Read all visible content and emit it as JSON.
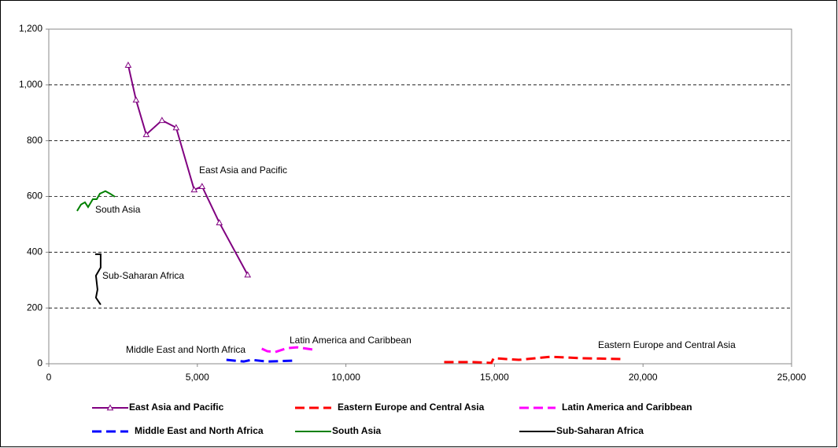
{
  "chart_data": {
    "type": "line",
    "xlim": [
      0,
      25000
    ],
    "xticks": [
      0,
      {
        "value": 5000,
        "label": "5,000"
      },
      {
        "value": 10000,
        "label": "10,000"
      },
      {
        "value": 15000,
        "label": "15,000"
      },
      {
        "value": 20000,
        "label": "20,000"
      },
      {
        "value": 25000,
        "label": "25,000"
      }
    ],
    "ylim": [
      0,
      1200
    ],
    "yticks": [
      0,
      200,
      400,
      600,
      800,
      {
        "value": 1000,
        "label": "1,000"
      },
      {
        "value": 1200,
        "label": "1,200"
      }
    ],
    "grid": true,
    "legend": "bottom",
    "series": [
      {
        "name": "East Asia and Pacific",
        "color": "#800080",
        "dashed": false,
        "marker": "triangle",
        "x": [
          2672,
          2937,
          3280,
          3810,
          4286,
          4894,
          5159,
          5741,
          6693
        ],
        "values": [
          1071,
          946,
          822,
          873,
          847,
          624,
          636,
          506,
          319
        ]
      },
      {
        "name": "Eastern Europe and Central Asia",
        "color": "#ff0000",
        "dashed": true,
        "x": [
          13307,
          14233,
          14894,
          14974,
          15820,
          16878,
          17937,
          19259
        ],
        "values": [
          6,
          6,
          3,
          20,
          14,
          25,
          20,
          17
        ]
      },
      {
        "name": "Latin America and Caribbean",
        "color": "#ff00ff",
        "dashed": true,
        "x": [
          7169,
          7354,
          7619,
          8016,
          8360,
          8889
        ],
        "values": [
          54,
          45,
          42,
          56,
          59,
          51
        ]
      },
      {
        "name": "Middle East and North Africa",
        "color": "#0000ff",
        "dashed": true,
        "x": [
          5979,
          6561,
          6825,
          7354,
          8201
        ],
        "values": [
          14,
          8,
          14,
          8,
          11
        ]
      },
      {
        "name": "South Asia",
        "color": "#008000",
        "dashed": false,
        "x": [
          952,
          1085,
          1217,
          1323,
          1481,
          1614,
          1720,
          1905,
          2063,
          2222
        ],
        "values": [
          548,
          571,
          579,
          562,
          590,
          590,
          610,
          619,
          610,
          599
        ]
      },
      {
        "name": "Sub-Saharan Africa",
        "color": "#000000",
        "dashed": false,
        "x": [
          1561,
          1746,
          1746,
          1587,
          1640,
          1587,
          1746
        ],
        "values": [
          393,
          393,
          345,
          316,
          266,
          237,
          212
        ]
      }
    ],
    "annotations": [
      "East Asia and Pacific",
      "South Asia",
      "Sub-Saharan Africa",
      "Middle East and North Africa",
      "Latin America and Caribbean",
      "Eastern Europe and Central Asia"
    ]
  }
}
